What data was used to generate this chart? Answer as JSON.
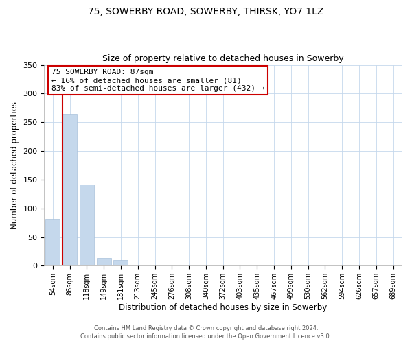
{
  "title": "75, SOWERBY ROAD, SOWERBY, THIRSK, YO7 1LZ",
  "subtitle": "Size of property relative to detached houses in Sowerby",
  "xlabel": "Distribution of detached houses by size in Sowerby",
  "ylabel": "Number of detached properties",
  "bar_labels": [
    "54sqm",
    "86sqm",
    "118sqm",
    "149sqm",
    "181sqm",
    "213sqm",
    "245sqm",
    "276sqm",
    "308sqm",
    "340sqm",
    "372sqm",
    "403sqm",
    "435sqm",
    "467sqm",
    "499sqm",
    "530sqm",
    "562sqm",
    "594sqm",
    "626sqm",
    "657sqm",
    "689sqm"
  ],
  "bar_values": [
    82,
    265,
    142,
    14,
    10,
    0,
    0,
    2,
    0,
    0,
    0,
    0,
    0,
    0,
    0,
    0,
    0,
    0,
    0,
    0,
    2
  ],
  "bar_color": "#c5d8ec",
  "bar_edge_color": "#a8c0da",
  "vline_x_idx": 1,
  "vline_color": "#cc0000",
  "ylim": [
    0,
    350
  ],
  "yticks": [
    0,
    50,
    100,
    150,
    200,
    250,
    300,
    350
  ],
  "annotation_text": "75 SOWERBY ROAD: 87sqm\n← 16% of detached houses are smaller (81)\n83% of semi-detached houses are larger (432) →",
  "annotation_box_color": "#ffffff",
  "annotation_box_edge": "#cc0000",
  "footer_line1": "Contains HM Land Registry data © Crown copyright and database right 2024.",
  "footer_line2": "Contains public sector information licensed under the Open Government Licence v3.0.",
  "bg_color": "#ffffff",
  "grid_color": "#c5d8ec",
  "title_fontsize": 10,
  "subtitle_fontsize": 9,
  "ylabel_fontsize": 8.5,
  "xlabel_fontsize": 8.5,
  "tick_fontsize": 7,
  "annot_fontsize": 8,
  "footer_fontsize": 6
}
